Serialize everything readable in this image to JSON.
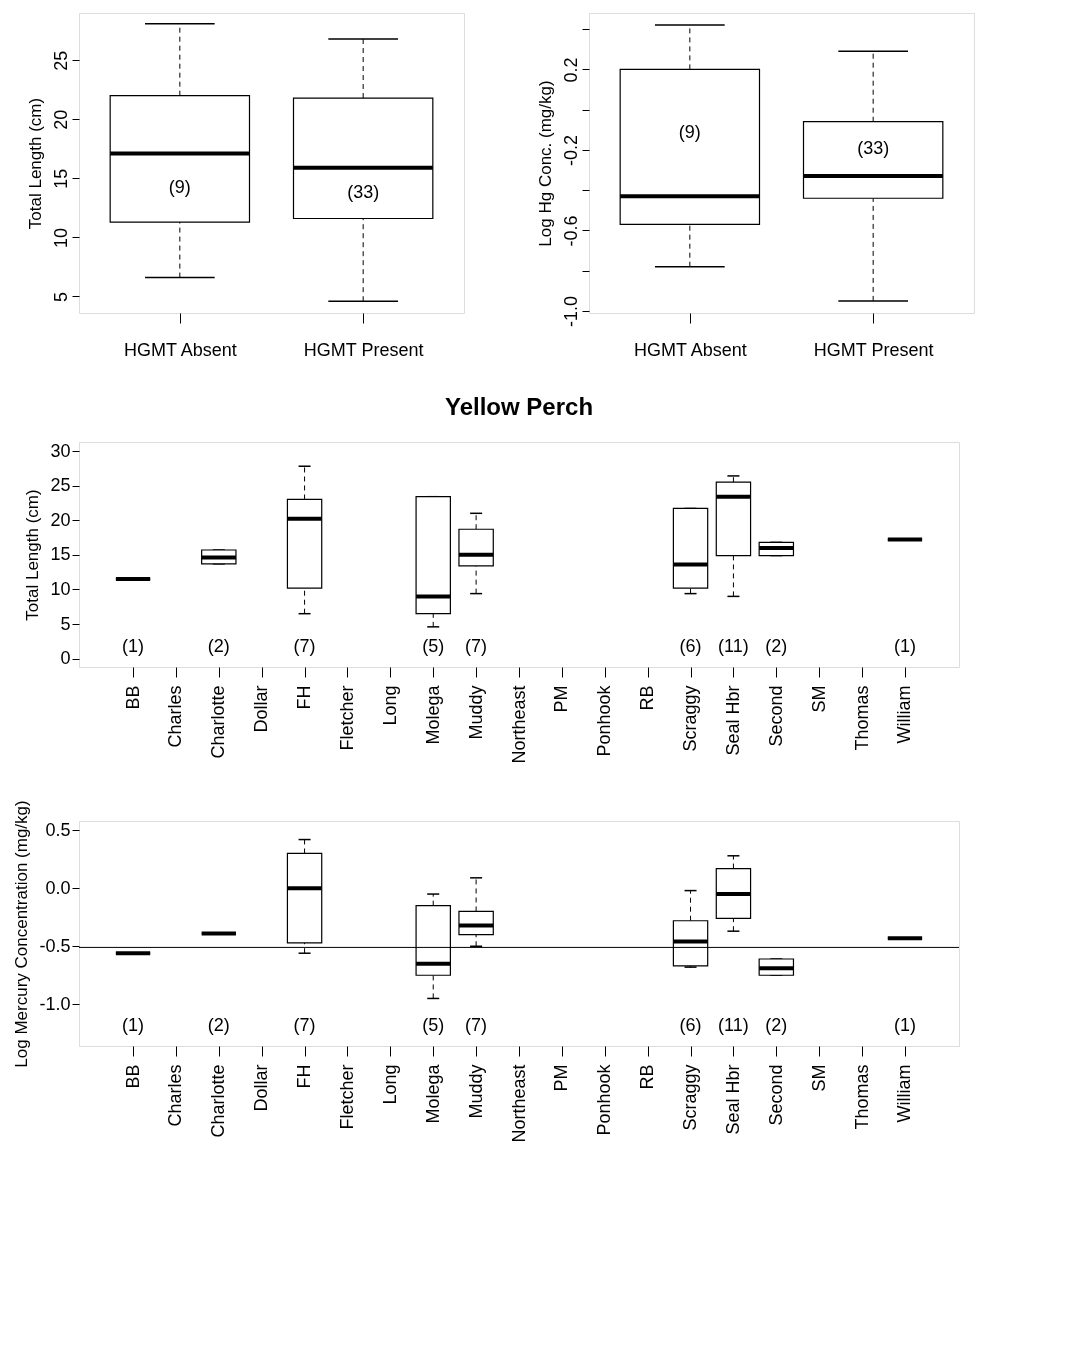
{
  "chart_data": [
    {
      "type": "box",
      "ylabel": "Total Length (cm)",
      "categories": [
        "HGMT Absent",
        "HGMT Present"
      ],
      "ylim": [
        3.6,
        29
      ],
      "yticks": [
        5,
        10,
        15,
        20,
        25
      ],
      "boxes": [
        {
          "low": 6.6,
          "q1": 11.3,
          "median": 17.1,
          "q3": 22.0,
          "high": 28.1
        },
        {
          "low": 4.6,
          "q1": 11.6,
          "median": 15.9,
          "q3": 21.8,
          "high": 26.8
        }
      ],
      "annotations": [
        "(9)",
        "(33)"
      ]
    },
    {
      "type": "box",
      "ylabel": "Log Hg Conc.  (mg/kg)",
      "categories": [
        "HGMT Absent",
        "HGMT Present"
      ],
      "ylim": [
        -1.01,
        0.48
      ],
      "yticks": [
        {
          "value": -1.0,
          "label": "-1.0"
        },
        {
          "value": -0.8,
          "label": null
        },
        {
          "value": -0.6,
          "label": "-0.6"
        },
        {
          "value": -0.4,
          "label": null
        },
        {
          "value": -0.2,
          "label": "-0.2"
        },
        {
          "value": 0.0,
          "label": null
        },
        {
          "value": 0.2,
          "label": "0.2"
        },
        {
          "value": 0.4,
          "label": null
        }
      ],
      "boxes": [
        {
          "low": -0.78,
          "q1": -0.57,
          "median": -0.43,
          "q3": 0.2,
          "high": 0.42
        },
        {
          "low": -0.95,
          "q1": -0.44,
          "median": -0.33,
          "q3": -0.06,
          "high": 0.29
        }
      ],
      "annotations": [
        "(9)",
        "(33)"
      ]
    },
    {
      "type": "box",
      "title": "Yellow Perch",
      "ylabel": "Total Length (cm)",
      "categories": [
        "BB",
        "Charles",
        "Charlotte",
        "Dollar",
        "FH",
        "Fletcher",
        "Long",
        "Molega",
        "Muddy",
        "Northeast",
        "PM",
        "Ponhook",
        "RB",
        "Scraggy",
        "Seal Hbr",
        "Second",
        "SM",
        "Thomas",
        "William"
      ],
      "ylim": [
        -1.2,
        31.3
      ],
      "yticks": [
        0,
        5,
        10,
        15,
        20,
        25,
        30
      ],
      "boxes": [
        {
          "low": 11.5,
          "q1": 11.5,
          "median": 11.5,
          "q3": 11.5,
          "high": 11.5
        },
        null,
        {
          "low": 13.7,
          "q1": 13.7,
          "median": 14.6,
          "q3": 15.7,
          "high": 15.7
        },
        null,
        {
          "low": 6.5,
          "q1": 10.2,
          "median": 20.2,
          "q3": 23.0,
          "high": 27.8
        },
        null,
        null,
        {
          "low": 4.6,
          "q1": 6.5,
          "median": 9.0,
          "q3": 23.4,
          "high": 23.4
        },
        {
          "low": 9.4,
          "q1": 13.4,
          "median": 15.0,
          "q3": 18.7,
          "high": 21.0
        },
        null,
        null,
        null,
        null,
        {
          "low": 9.4,
          "q1": 10.2,
          "median": 13.6,
          "q3": 21.7,
          "high": 21.7
        },
        {
          "low": 9.0,
          "q1": 14.9,
          "median": 23.4,
          "q3": 25.5,
          "high": 26.4
        },
        {
          "low": 14.9,
          "q1": 14.9,
          "median": 16.0,
          "q3": 16.8,
          "high": 16.8
        },
        null,
        null,
        {
          "low": 17.2,
          "q1": 17.2,
          "median": 17.2,
          "q3": 17.2,
          "high": 17.2
        }
      ],
      "annotations": [
        "(1)",
        "(2)",
        "(7)",
        "(5)",
        "(7)",
        "(6)",
        "(11)",
        "(2)",
        "(1)"
      ]
    },
    {
      "type": "box",
      "ylabel": "Log Mercury Concentration (mg/kg)",
      "categories": [
        "BB",
        "Charles",
        "Charlotte",
        "Dollar",
        "FH",
        "Fletcher",
        "Long",
        "Molega",
        "Muddy",
        "Northeast",
        "PM",
        "Ponhook",
        "RB",
        "Scraggy",
        "Seal Hbr",
        "Second",
        "SM",
        "Thomas",
        "William"
      ],
      "ylim": [
        -1.36,
        0.58
      ],
      "yticks": [
        {
          "value": -1.0,
          "label": "-1.0"
        },
        {
          "value": -0.5,
          "label": "-0.5"
        },
        {
          "value": 0.0,
          "label": "0.0"
        },
        {
          "value": 0.5,
          "label": "0.5"
        }
      ],
      "boxes": [
        {
          "low": -0.56,
          "q1": -0.56,
          "median": -0.56,
          "q3": -0.56,
          "high": -0.56
        },
        null,
        {
          "low": -0.39,
          "q1": -0.39,
          "median": -0.39,
          "q3": -0.39,
          "high": -0.39
        },
        null,
        {
          "low": -0.56,
          "q1": -0.47,
          "median": 0.0,
          "q3": 0.3,
          "high": 0.42
        },
        null,
        null,
        {
          "low": -0.95,
          "q1": -0.75,
          "median": -0.65,
          "q3": -0.15,
          "high": -0.05
        },
        {
          "low": -0.5,
          "q1": -0.4,
          "median": -0.32,
          "q3": -0.2,
          "high": 0.09
        },
        null,
        null,
        null,
        null,
        {
          "low": -0.68,
          "q1": -0.67,
          "median": -0.46,
          "q3": -0.28,
          "high": -0.02
        },
        {
          "low": -0.37,
          "q1": -0.26,
          "median": -0.05,
          "q3": 0.17,
          "high": 0.28
        },
        {
          "low": -0.75,
          "q1": -0.75,
          "median": -0.69,
          "q3": -0.61,
          "high": -0.61
        },
        null,
        null,
        {
          "low": -0.43,
          "q1": -0.43,
          "median": -0.43,
          "q3": -0.43,
          "high": -0.43
        }
      ],
      "ref_lines": [
        {
          "axis": "y",
          "value": -0.51
        }
      ],
      "annotations": [
        "(1)",
        "(2)",
        "(7)",
        "(5)",
        "(7)",
        "(6)",
        "(11)",
        "(2)",
        "(1)"
      ]
    }
  ]
}
